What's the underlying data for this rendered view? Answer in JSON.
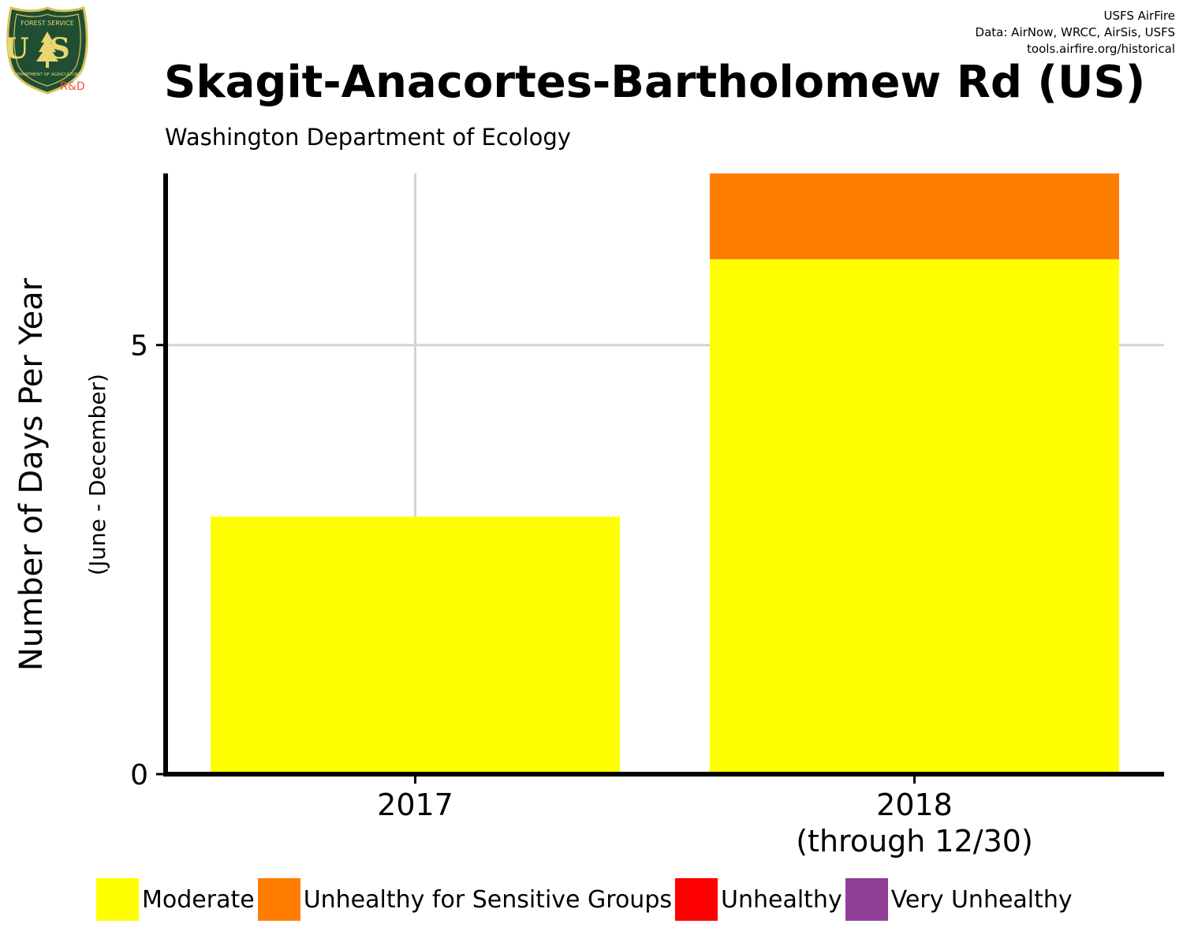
{
  "header": {
    "credits": [
      "USFS AirFire",
      "Data: AirNow, WRCC, AirSis, USFS",
      "tools.airfire.org/historical"
    ],
    "logo": {
      "icon": "usfs-shield-logo",
      "top_text": "FOREST SERVICE",
      "letters": "US",
      "bottom_text": "DEPARTMENT OF AGRICULTURE",
      "tag": "R&D"
    }
  },
  "chart_data": {
    "type": "bar",
    "stacked": true,
    "title": "Skagit-Anacortes-Bartholomew Rd (US)",
    "subtitle": "Washington Department of Ecology",
    "ylabel": "Number of Days Per Year",
    "ylabel_sub": "(June - December)",
    "xlabel": "",
    "categories": [
      "2017",
      "2018\n(through 12/30)"
    ],
    "category_lines": [
      [
        "2017"
      ],
      [
        "2018",
        "(through 12/30)"
      ]
    ],
    "ylim": [
      0,
      7
    ],
    "yticks": [
      0,
      5
    ],
    "grid": true,
    "legend_position": "bottom",
    "series": [
      {
        "name": "Moderate",
        "color": "#FFFF00",
        "values": [
          3,
          6
        ]
      },
      {
        "name": "Unhealthy for Sensitive Groups",
        "color": "#FF7E00",
        "values": [
          0,
          1
        ]
      },
      {
        "name": "Unhealthy",
        "color": "#FF0000",
        "values": [
          0,
          0
        ]
      },
      {
        "name": "Very Unhealthy",
        "color": "#8F3F97",
        "values": [
          0,
          0
        ]
      }
    ]
  }
}
